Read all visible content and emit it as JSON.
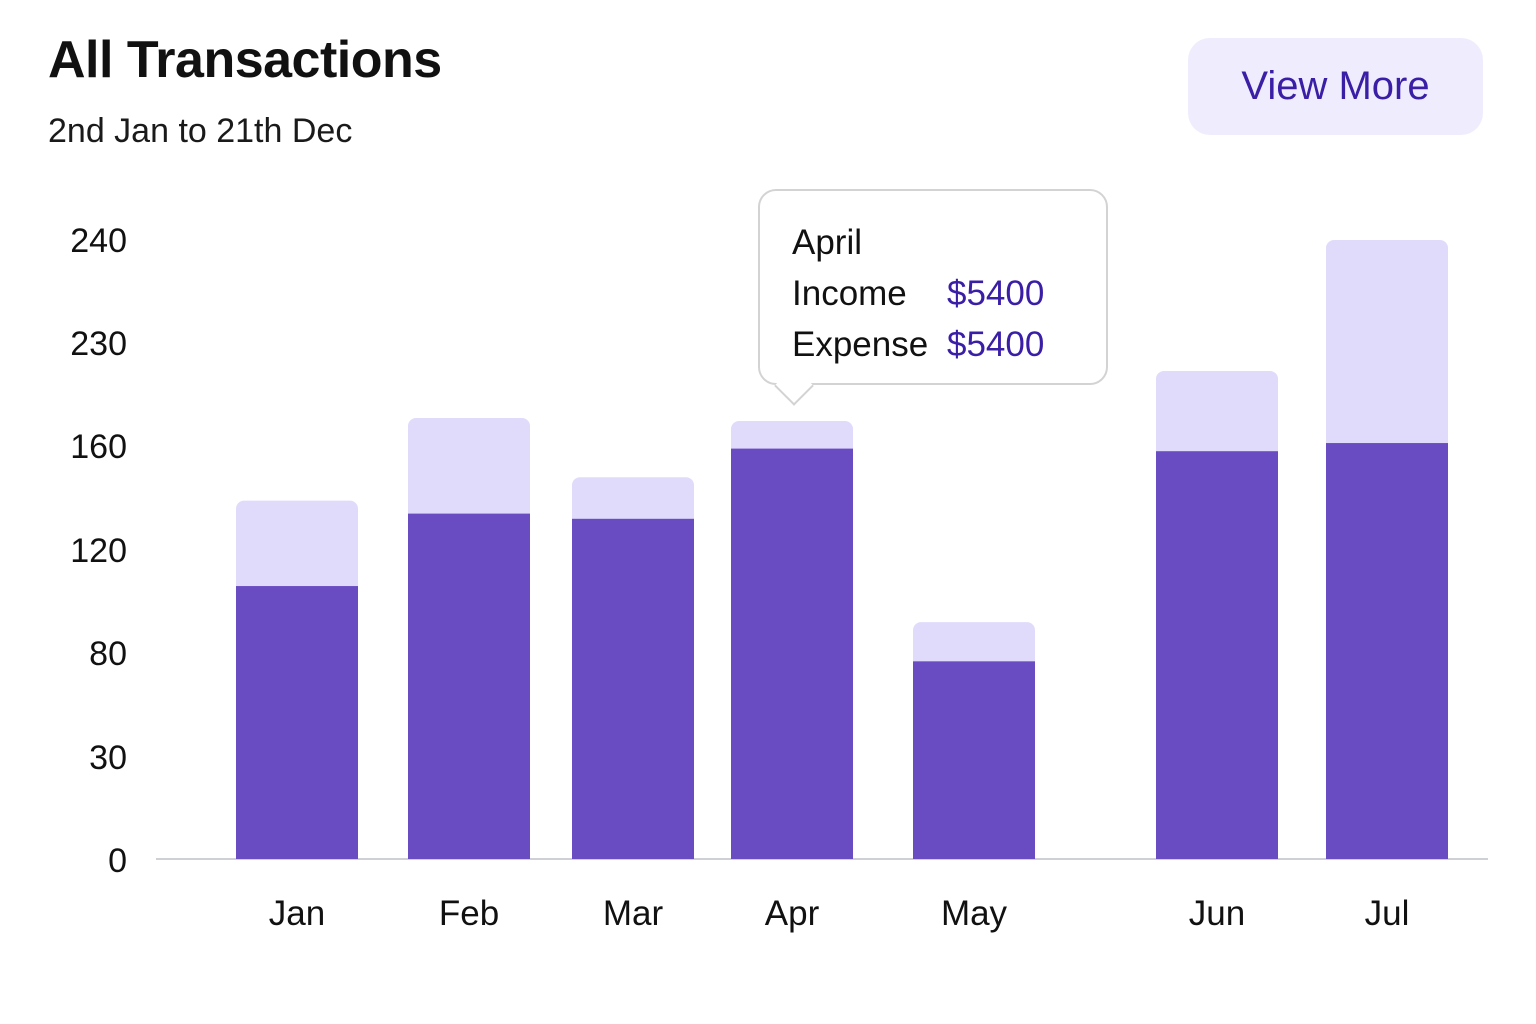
{
  "header": {
    "title": "All Transactions",
    "subtitle": "2nd Jan to 21th Dec",
    "view_more_label": "View More"
  },
  "colors": {
    "income": "#6a4cc2",
    "expense": "#e0dbfb",
    "axis": "#cfcfd6",
    "accent_text": "#3a1fa6"
  },
  "tooltip": {
    "month": "April",
    "income_label": "Income",
    "income_value": "$5400",
    "expense_label": "Expense",
    "expense_value": "$5400"
  },
  "chart_data": {
    "type": "bar",
    "stacked": true,
    "categories": [
      "Jan",
      "Feb",
      "Mar",
      "Apr",
      "May",
      "Jun",
      "Jul"
    ],
    "y_ticks": [
      "0",
      "30",
      "80",
      "120",
      "160",
      "230",
      "240"
    ],
    "series": [
      {
        "key": "income",
        "values": [
          106,
          134,
          132,
          159,
          76,
          158,
          162
        ]
      },
      {
        "key": "expense",
        "values": [
          33,
          45,
          16,
          18,
          16,
          53,
          86
        ]
      }
    ],
    "ylim": [
      0,
      240
    ],
    "grid": false,
    "legend": "none"
  }
}
